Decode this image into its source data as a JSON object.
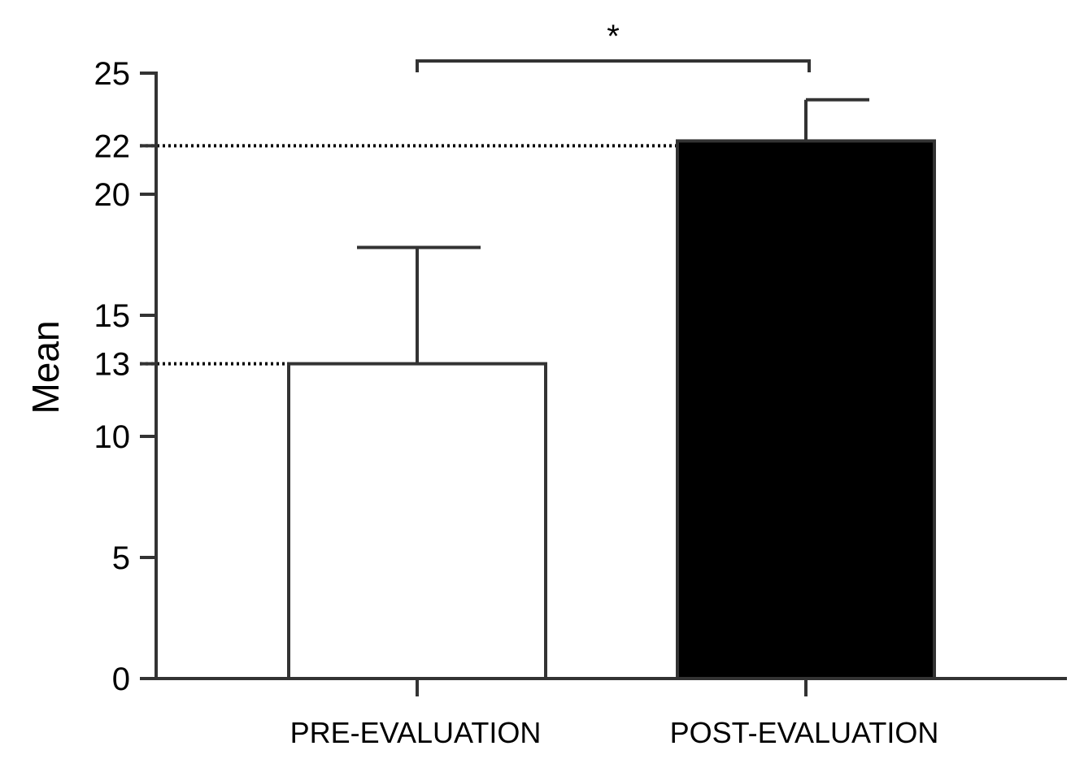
{
  "chart_data": {
    "type": "bar",
    "ylabel": "Mean",
    "xlabel": "",
    "categories": [
      "PRE-EVALUATION",
      "POST-EVALUATION"
    ],
    "values": [
      13,
      22.2
    ],
    "error_upper": [
      17.8,
      23.9
    ],
    "bar_colors": [
      "#ffffff",
      "#000000"
    ],
    "bar_edge_color": "#333333",
    "ylim": [
      0,
      25
    ],
    "yticks": [
      0,
      5,
      10,
      13,
      15,
      20,
      22,
      25
    ],
    "yticks_labels": [
      "0",
      "5",
      "10",
      "13",
      "15",
      "20",
      "22",
      "25"
    ],
    "reference_lines": [
      13,
      22
    ],
    "significance": {
      "label": "*",
      "between": [
        0,
        1
      ]
    },
    "grid": false,
    "legend": "none"
  }
}
